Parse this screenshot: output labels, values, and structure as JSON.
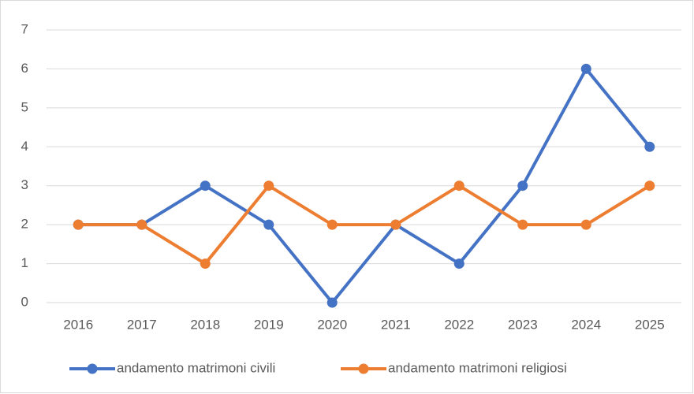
{
  "chart_data": {
    "type": "line",
    "categories": [
      "2016",
      "2017",
      "2018",
      "2019",
      "2020",
      "2021",
      "2022",
      "2023",
      "2024",
      "2025"
    ],
    "series": [
      {
        "name": "andamento matrimoni civili",
        "color": "#4472c4",
        "values": [
          2,
          2,
          3,
          2,
          0,
          2,
          1,
          3,
          6,
          4
        ]
      },
      {
        "name": "andamento matrimoni religiosi",
        "color": "#ed7d31",
        "values": [
          2,
          2,
          1,
          3,
          2,
          2,
          3,
          2,
          2,
          3
        ]
      }
    ],
    "ylim": [
      0,
      7
    ],
    "yticks": [
      0,
      1,
      2,
      3,
      4,
      5,
      6,
      7
    ],
    "grid": true,
    "legend": "bottom"
  }
}
